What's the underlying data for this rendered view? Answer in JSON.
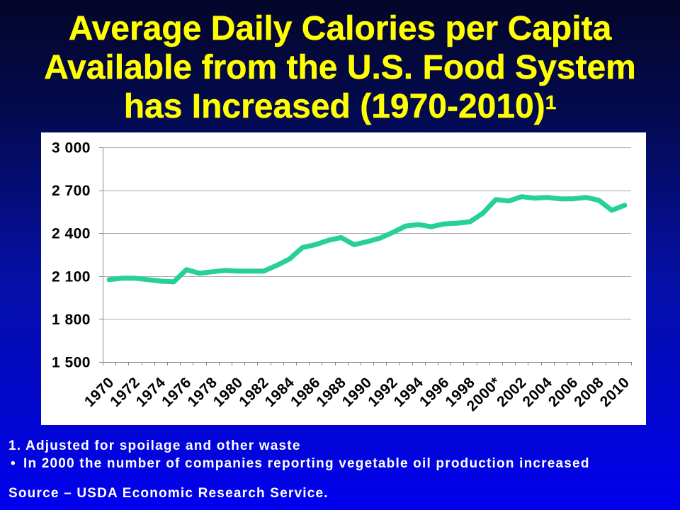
{
  "slide": {
    "title_lines": [
      "Average Daily Calories per Capita",
      "Available from the U.S. Food System",
      "has Increased (1970-2010)"
    ],
    "title_superscript": "1",
    "footnote": "1. Adjusted for spoilage and other waste",
    "bullet_symbol": "•",
    "bullet_note": "In 2000 the number of companies reporting vegetable oil production increased",
    "source": "Source – USDA Economic Research Service."
  },
  "colors": {
    "title": "#FFFF00",
    "notes_text": "#FFFFFF",
    "chart_background": "#FFFFFF",
    "background_top": "#04062A",
    "background_bottom": "#0000EE"
  },
  "chart_data": {
    "type": "line",
    "x": [
      1970,
      1971,
      1972,
      1973,
      1974,
      1975,
      1976,
      1977,
      1978,
      1979,
      1980,
      1981,
      1982,
      1983,
      1984,
      1985,
      1986,
      1987,
      1988,
      1989,
      1990,
      1991,
      1992,
      1993,
      1994,
      1995,
      1996,
      1997,
      1998,
      1999,
      2000,
      2001,
      2002,
      2003,
      2004,
      2005,
      2006,
      2007,
      2008,
      2009,
      2010
    ],
    "x_tick_labels": [
      {
        "x": 1970,
        "label": "1970"
      },
      {
        "x": 1972,
        "label": "1972"
      },
      {
        "x": 1974,
        "label": "1974"
      },
      {
        "x": 1976,
        "label": "1976"
      },
      {
        "x": 1978,
        "label": "1978"
      },
      {
        "x": 1980,
        "label": "1980"
      },
      {
        "x": 1982,
        "label": "1982"
      },
      {
        "x": 1984,
        "label": "1984"
      },
      {
        "x": 1986,
        "label": "1986"
      },
      {
        "x": 1988,
        "label": "1988"
      },
      {
        "x": 1990,
        "label": "1990"
      },
      {
        "x": 1992,
        "label": "1992"
      },
      {
        "x": 1994,
        "label": "1994"
      },
      {
        "x": 1996,
        "label": "1996"
      },
      {
        "x": 1998,
        "label": "1998"
      },
      {
        "x": 2000,
        "label": "2000*"
      },
      {
        "x": 2002,
        "label": "2002"
      },
      {
        "x": 2004,
        "label": "2004"
      },
      {
        "x": 2006,
        "label": "2006"
      },
      {
        "x": 2008,
        "label": "2008"
      },
      {
        "x": 2010,
        "label": "2010"
      }
    ],
    "series": [
      {
        "color": "#27D09A",
        "values": [
          2075,
          2085,
          2085,
          2075,
          2065,
          2060,
          2145,
          2120,
          2130,
          2140,
          2135,
          2135,
          2135,
          2175,
          2220,
          2300,
          2320,
          2350,
          2370,
          2320,
          2340,
          2365,
          2405,
          2450,
          2460,
          2445,
          2465,
          2470,
          2480,
          2540,
          2635,
          2625,
          2655,
          2645,
          2650,
          2640,
          2640,
          2650,
          2630,
          2560,
          2595
        ]
      }
    ],
    "y_ticks": [
      3000,
      2700,
      2400,
      2100,
      1800,
      1500
    ],
    "y_tick_labels": [
      "3 000",
      "2 700",
      "2 400",
      "2 100",
      "1 800",
      "1 500"
    ],
    "ylim": [
      1500,
      3000
    ],
    "grid": true,
    "legend": "none"
  }
}
